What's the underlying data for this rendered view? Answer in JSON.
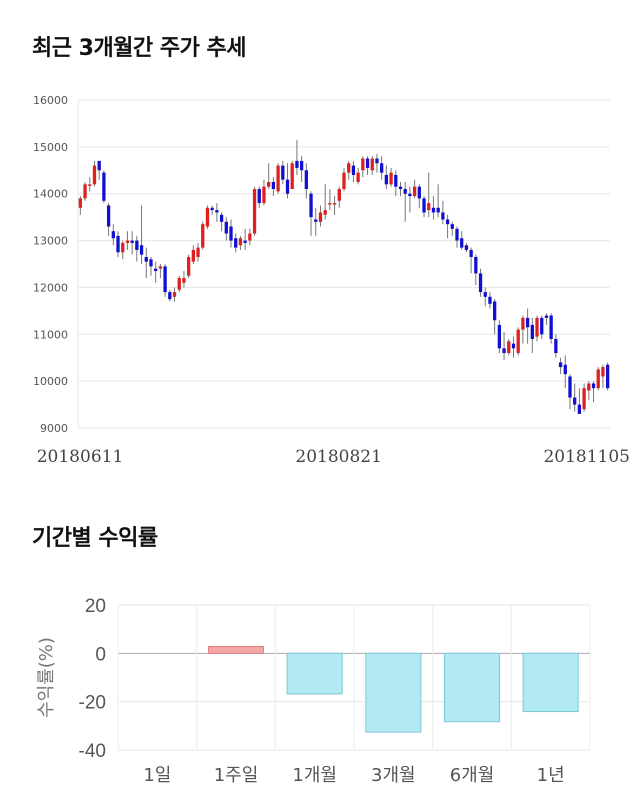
{
  "sections": {
    "price_title": "최근 3개월간 주가 추세",
    "return_title": "기간별 수익률"
  },
  "colors": {
    "up": "#e02020",
    "down": "#1010d0",
    "wick": "#777777",
    "bar_pos_fill": "#f4a7a7",
    "bar_pos_stroke": "#e57c7c",
    "bar_neg_fill": "#b2eaf4",
    "bar_neg_stroke": "#7fc8d6"
  },
  "chart_data": [
    {
      "type": "candlestick",
      "title": "최근 3개월간 주가 추세",
      "ylim": [
        9000,
        16000
      ],
      "y_ticks": [
        "16000",
        "15000",
        "14000",
        "13000",
        "12000",
        "11000",
        "10000",
        "9000"
      ],
      "x_labels": [
        "20180611",
        "20180821",
        "20181105"
      ],
      "grid": true,
      "candles": [
        [
          13700,
          13900,
          13550,
          13950
        ],
        [
          13900,
          14200,
          13850,
          14250
        ],
        [
          14200,
          14200,
          14050,
          14350
        ],
        [
          14200,
          14600,
          14150,
          14700
        ],
        [
          14700,
          14500,
          14300,
          14700
        ],
        [
          14450,
          13850,
          13800,
          14500
        ],
        [
          13750,
          13300,
          13100,
          13800
        ],
        [
          13200,
          13050,
          12900,
          13350
        ],
        [
          13100,
          12750,
          12650,
          13200
        ],
        [
          12750,
          12950,
          12600,
          13000
        ],
        [
          12950,
          13000,
          12800,
          13200
        ],
        [
          13000,
          12950,
          12700,
          13200
        ],
        [
          13000,
          12800,
          12550,
          13100
        ],
        [
          12900,
          12700,
          12500,
          13750
        ],
        [
          12650,
          12550,
          12200,
          12850
        ],
        [
          12600,
          12450,
          12250,
          12650
        ],
        [
          12400,
          12350,
          12100,
          12550
        ],
        [
          12400,
          12450,
          12200,
          12500
        ],
        [
          12450,
          11900,
          11800,
          12500
        ],
        [
          11900,
          11750,
          11700,
          11950
        ],
        [
          11800,
          11900,
          11700,
          12000
        ],
        [
          11950,
          12200,
          11900,
          12250
        ],
        [
          12100,
          12200,
          12000,
          12350
        ],
        [
          12250,
          12650,
          12200,
          12700
        ],
        [
          12550,
          12800,
          12500,
          12900
        ],
        [
          12650,
          12850,
          12550,
          12950
        ],
        [
          12850,
          13350,
          12800,
          13400
        ],
        [
          13300,
          13700,
          13250,
          13750
        ],
        [
          13700,
          13650,
          13550,
          13750
        ],
        [
          13650,
          13600,
          13400,
          13800
        ],
        [
          13550,
          13400,
          13200,
          13600
        ],
        [
          13400,
          13150,
          13000,
          13500
        ],
        [
          13300,
          13000,
          12850,
          13450
        ],
        [
          13050,
          12850,
          12750,
          13150
        ],
        [
          12900,
          13050,
          12800,
          13100
        ],
        [
          13000,
          12950,
          12800,
          13250
        ],
        [
          13000,
          13150,
          12900,
          13250
        ],
        [
          13150,
          14100,
          13100,
          14150
        ],
        [
          14100,
          13800,
          13700,
          14150
        ],
        [
          13800,
          14150,
          13750,
          14300
        ],
        [
          14150,
          14250,
          14100,
          14650
        ],
        [
          14250,
          14100,
          13950,
          14350
        ],
        [
          14050,
          14600,
          14000,
          14650
        ],
        [
          14600,
          14300,
          14200,
          14700
        ],
        [
          14300,
          14000,
          13900,
          14650
        ],
        [
          14100,
          14650,
          14100,
          14700
        ],
        [
          14700,
          14550,
          14400,
          15150
        ],
        [
          14700,
          14500,
          14250,
          14800
        ],
        [
          14500,
          14100,
          13900,
          14650
        ],
        [
          14000,
          13500,
          13100,
          14050
        ],
        [
          13450,
          13400,
          13100,
          13700
        ],
        [
          13400,
          13600,
          13300,
          13750
        ],
        [
          13550,
          13650,
          13450,
          14200
        ],
        [
          13800,
          13800,
          13650,
          14100
        ],
        [
          13800,
          13800,
          13550,
          13950
        ],
        [
          13850,
          14100,
          13700,
          14150
        ],
        [
          14100,
          14450,
          14050,
          14550
        ],
        [
          14450,
          14650,
          14300,
          14700
        ],
        [
          14600,
          14400,
          14250,
          14700
        ],
        [
          14250,
          14450,
          14200,
          14550
        ],
        [
          14500,
          14750,
          14350,
          14800
        ],
        [
          14750,
          14550,
          14400,
          14800
        ],
        [
          14500,
          14750,
          14400,
          14800
        ],
        [
          14750,
          14650,
          14450,
          14850
        ],
        [
          14650,
          14450,
          14300,
          14800
        ],
        [
          14400,
          14200,
          14100,
          14600
        ],
        [
          14200,
          14450,
          14150,
          14550
        ],
        [
          14400,
          14150,
          13950,
          14500
        ],
        [
          14150,
          14100,
          13950,
          14250
        ],
        [
          14100,
          14000,
          13400,
          14250
        ],
        [
          14000,
          13950,
          13600,
          14150
        ],
        [
          13950,
          14150,
          13900,
          14300
        ],
        [
          14150,
          13900,
          13700,
          14200
        ],
        [
          13900,
          13600,
          13500,
          13950
        ],
        [
          13650,
          13800,
          13500,
          14450
        ],
        [
          13700,
          13600,
          13450,
          13950
        ],
        [
          13700,
          13600,
          13500,
          14200
        ],
        [
          13600,
          13450,
          13350,
          13850
        ],
        [
          13450,
          13350,
          13050,
          13550
        ],
        [
          13350,
          13250,
          13100,
          13400
        ],
        [
          13250,
          13000,
          12850,
          13300
        ],
        [
          13050,
          12850,
          12800,
          13200
        ],
        [
          12900,
          12800,
          12750,
          12950
        ],
        [
          12800,
          12650,
          12300,
          12850
        ],
        [
          12650,
          12300,
          12050,
          12700
        ],
        [
          12300,
          11900,
          11800,
          12400
        ],
        [
          11900,
          11800,
          11600,
          12000
        ],
        [
          11800,
          11650,
          11550,
          11900
        ],
        [
          11700,
          11300,
          11000,
          11750
        ],
        [
          11200,
          10700,
          10600,
          11300
        ],
        [
          10700,
          10600,
          10450,
          11050
        ],
        [
          10600,
          10850,
          10550,
          10900
        ],
        [
          10800,
          10700,
          10500,
          10950
        ],
        [
          10600,
          11100,
          10550,
          11150
        ],
        [
          11100,
          11350,
          10800,
          11400
        ],
        [
          11350,
          11150,
          10800,
          11550
        ],
        [
          11200,
          10900,
          10600,
          11350
        ],
        [
          10950,
          11350,
          10850,
          11400
        ],
        [
          11350,
          11000,
          10900,
          11400
        ],
        [
          11400,
          11350,
          11200,
          11450
        ],
        [
          11400,
          10900,
          10800,
          11450
        ],
        [
          10900,
          10600,
          10500,
          11000
        ],
        [
          10400,
          10300,
          10150,
          10500
        ],
        [
          10350,
          10150,
          9850,
          10550
        ],
        [
          10100,
          9650,
          9400,
          10150
        ],
        [
          9650,
          9500,
          9350,
          9950
        ],
        [
          9500,
          9300,
          9300,
          9850
        ],
        [
          9400,
          9850,
          9350,
          9950
        ],
        [
          9800,
          9950,
          9600,
          10000
        ],
        [
          9950,
          9850,
          9550,
          10000
        ],
        [
          9850,
          10250,
          9800,
          10300
        ],
        [
          10100,
          10300,
          9850,
          10350
        ],
        [
          10350,
          9850,
          9800,
          10400
        ]
      ]
    },
    {
      "type": "bar",
      "title": "기간별 수익률",
      "ylabel": "수익률(%)",
      "ylim": [
        -40,
        20
      ],
      "y_ticks": [
        "20",
        "0",
        "-20",
        "-40"
      ],
      "categories": [
        "1일",
        "1주일",
        "1개월",
        "3개월",
        "6개월",
        "1년"
      ],
      "values": [
        0,
        2.8,
        -16.8,
        -32.6,
        -28.3,
        -24.1
      ],
      "grid": true
    }
  ]
}
